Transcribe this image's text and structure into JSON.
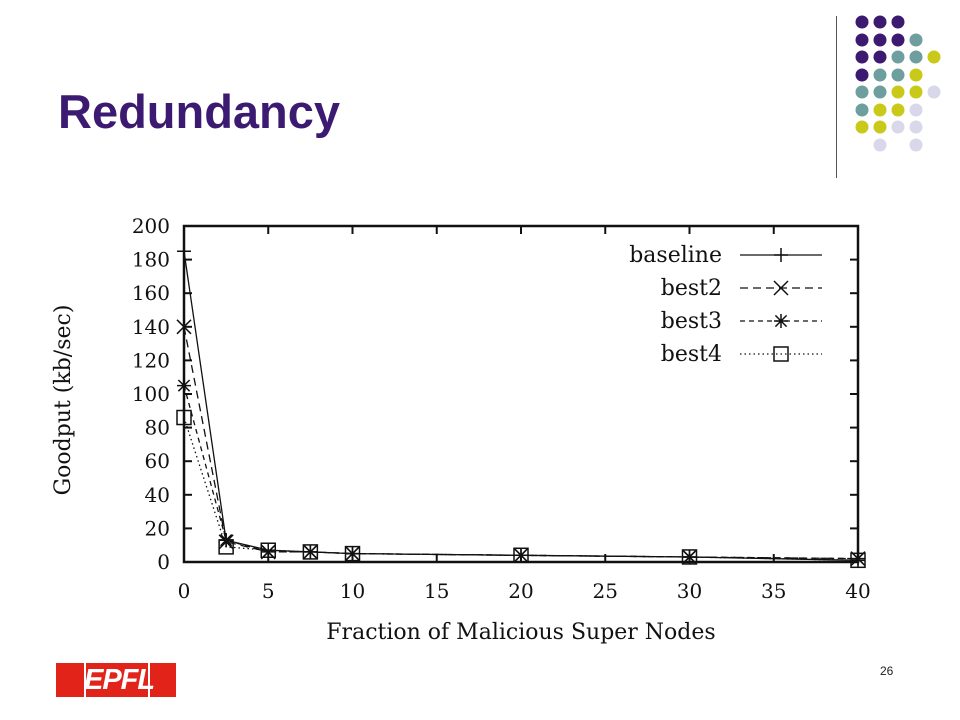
{
  "slide": {
    "title": "Redundancy",
    "page_number": "26",
    "logo_text": "EPFL"
  },
  "theme": {
    "title_color": "#3d1a72",
    "dot_colors": [
      "#3d1a72",
      "#6f9e9e",
      "#c9c91a",
      "#d8d8ea"
    ],
    "logo_color": "#e2231a"
  },
  "chart_data": {
    "type": "line",
    "xlabel": "Fraction of Malicious Super Nodes",
    "ylabel": "Goodput (kb/sec)",
    "xlim": [
      0,
      40
    ],
    "ylim": [
      0,
      200
    ],
    "xticks": [
      0,
      5,
      10,
      15,
      20,
      25,
      30,
      35,
      40
    ],
    "yticks": [
      0,
      20,
      40,
      60,
      80,
      100,
      120,
      140,
      160,
      180,
      200
    ],
    "legend_position": "top-right",
    "grid": false,
    "series": [
      {
        "name": "baseline",
        "marker": "plus",
        "dash": "solid",
        "x": [
          0,
          2.5,
          5,
          7.5,
          10,
          20,
          30,
          40
        ],
        "y": [
          185,
          13,
          7,
          6,
          5,
          4,
          3,
          1
        ]
      },
      {
        "name": "best2",
        "marker": "cross",
        "dash": "dashed",
        "x": [
          0,
          2.5,
          5,
          7.5,
          10,
          20,
          30,
          40
        ],
        "y": [
          140,
          12,
          6,
          6,
          5,
          4,
          3,
          2
        ]
      },
      {
        "name": "best3",
        "marker": "star",
        "dash": "dash-dot",
        "x": [
          0,
          2.5,
          5,
          7.5,
          10,
          20,
          30,
          40
        ],
        "y": [
          105,
          13,
          6,
          6,
          5,
          4,
          3,
          2
        ]
      },
      {
        "name": "best4",
        "marker": "square",
        "dash": "dotted",
        "x": [
          0,
          2.5,
          5,
          7.5,
          10,
          20,
          30,
          40
        ],
        "y": [
          86,
          9,
          7,
          6,
          5,
          4,
          3,
          1
        ]
      }
    ]
  }
}
